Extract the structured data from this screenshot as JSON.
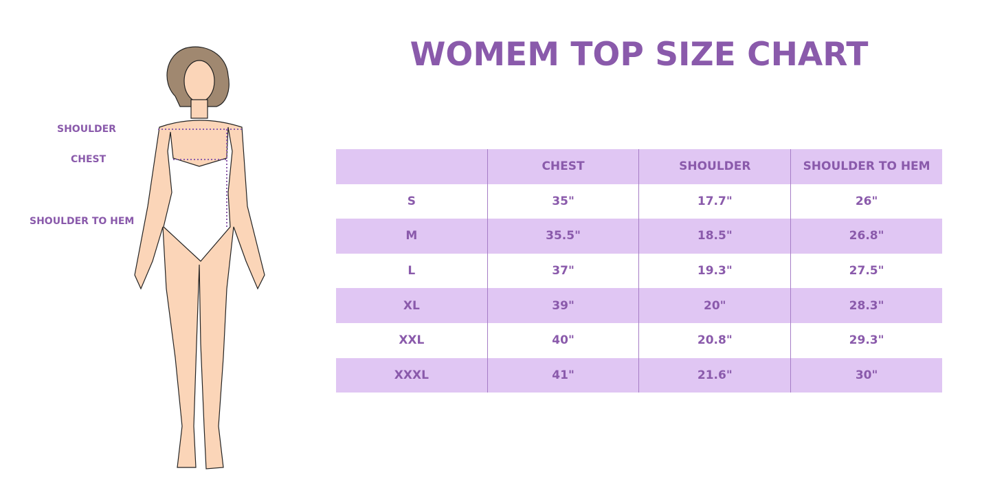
{
  "title": "WOMEM TOP SIZE CHART",
  "figure_labels": {
    "shoulder": "SHOULDER",
    "chest": "CHEST",
    "shoulder_to_hem": "SHOULDER TO HEM"
  },
  "colors": {
    "accent": "#8a5aab",
    "band": "#e0c6f3",
    "skin": "#fbd5b8",
    "hair": "#a08870"
  },
  "table": {
    "headers": [
      "",
      "CHEST",
      "SHOULDER",
      "SHOULDER TO HEM"
    ],
    "rows": [
      [
        "S",
        "35\"",
        "17.7\"",
        "26\""
      ],
      [
        "M",
        "35.5\"",
        "18.5\"",
        "26.8\""
      ],
      [
        "L",
        "37\"",
        "19.3\"",
        "27.5\""
      ],
      [
        "XL",
        "39\"",
        "20\"",
        "28.3\""
      ],
      [
        "XXL",
        "40\"",
        "20.8\"",
        "29.3\""
      ],
      [
        "XXXL",
        "41\"",
        "21.6\"",
        "30\""
      ]
    ]
  }
}
